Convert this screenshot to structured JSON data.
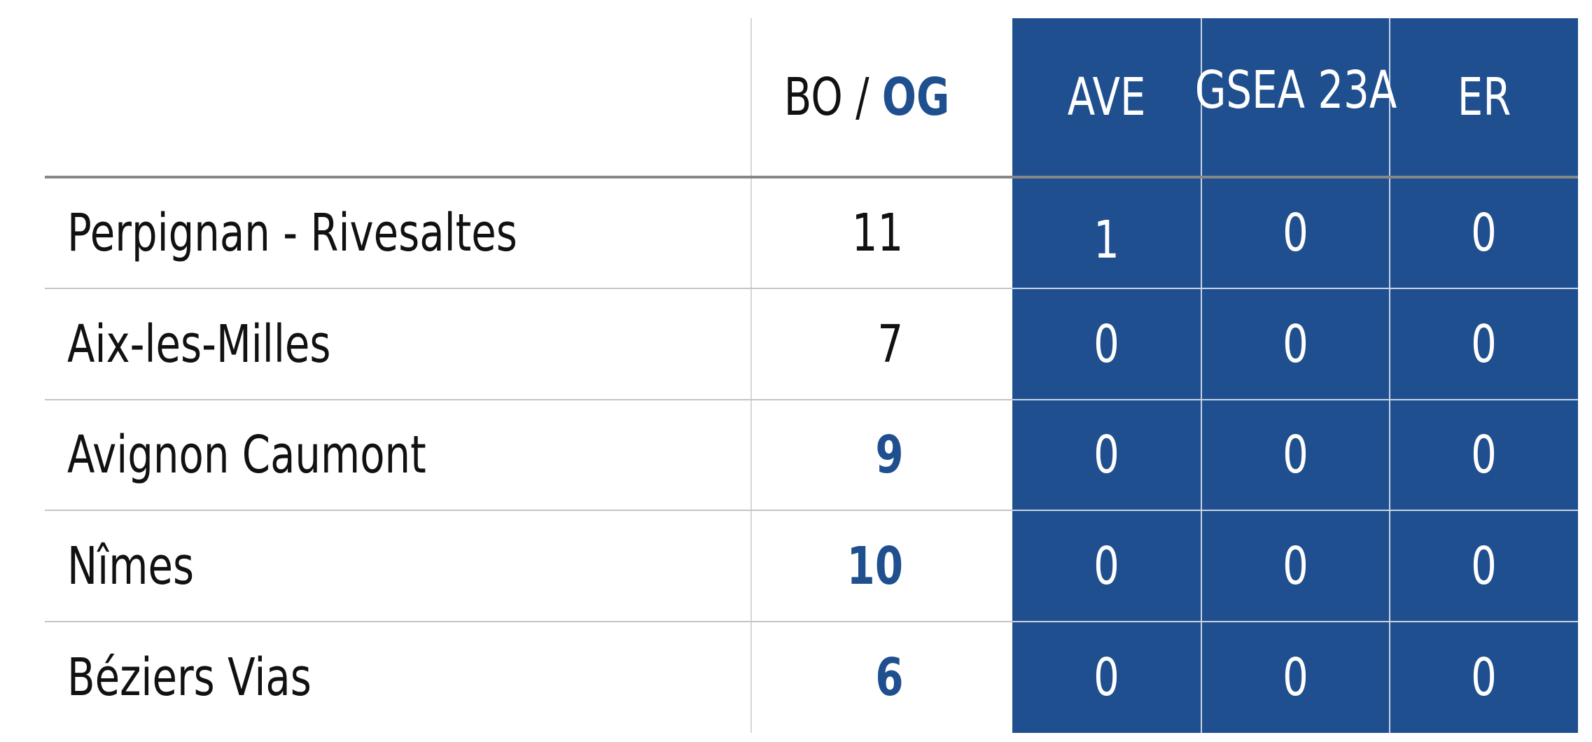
{
  "header": {
    "bo_label": "BO / ",
    "og_label": "OG",
    "columns": [
      "AVE",
      "GSEA 23A",
      "ER"
    ]
  },
  "rows": [
    {
      "name": "Perpignan - Rivesaltes",
      "bo": "11",
      "highlight": false,
      "values": [
        "1",
        "0",
        "0"
      ]
    },
    {
      "name": "Aix-les-Milles",
      "bo": "7",
      "highlight": false,
      "values": [
        "0",
        "0",
        "0"
      ]
    },
    {
      "name": "Avignon Caumont",
      "bo": "9",
      "highlight": true,
      "values": [
        "0",
        "0",
        "0"
      ]
    },
    {
      "name": "Nîmes",
      "bo": "10",
      "highlight": true,
      "values": [
        "0",
        "0",
        "0"
      ]
    },
    {
      "name": "Béziers Vias",
      "bo": "6",
      "highlight": true,
      "values": [
        "0",
        "0",
        "0"
      ]
    }
  ],
  "colors": {
    "panel_blue": "#204f8f",
    "og_blue": "#204f8f",
    "text": "#111111"
  }
}
